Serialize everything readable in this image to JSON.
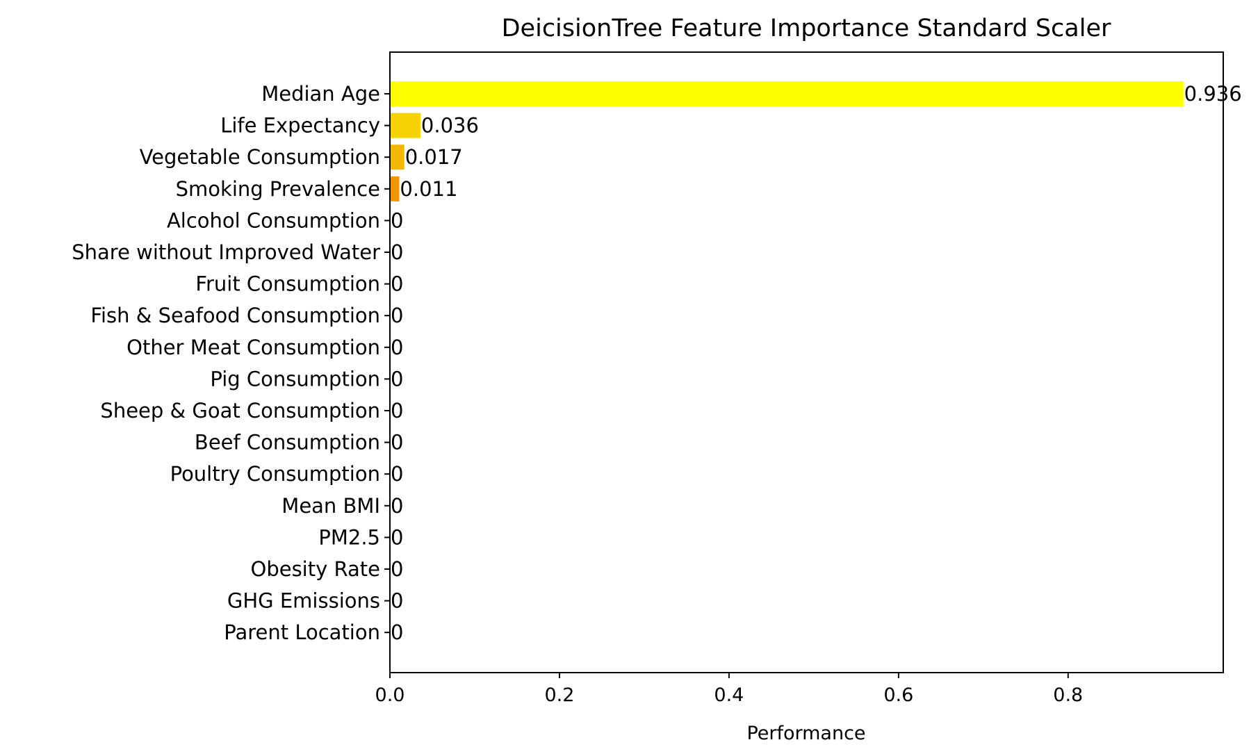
{
  "chart_data": {
    "type": "bar",
    "orientation": "horizontal",
    "title": "DeicisionTree Feature Importance Standard Scaler",
    "xlabel": "Performance",
    "ylabel": "",
    "xlim": [
      0,
      0.983
    ],
    "xticks": [
      0.0,
      0.2,
      0.4,
      0.6,
      0.8
    ],
    "xtick_labels": [
      "0.0",
      "0.2",
      "0.4",
      "0.6",
      "0.8"
    ],
    "grid": false,
    "legend": "none",
    "categories": [
      "Median Age",
      "Life Expectancy",
      "Vegetable Consumption",
      "Smoking Prevalence",
      "Alcohol Consumption",
      "Share without Improved Water",
      "Fruit Consumption",
      "Fish & Seafood Consumption",
      "Other Meat Consumption",
      "Pig Consumption",
      "Sheep & Goat Consumption",
      "Beef Consumption",
      "Poultry Consumption",
      "Mean BMI",
      "PM2.5",
      "Obesity Rate",
      "GHG Emissions",
      "Parent Location"
    ],
    "values": [
      0.936,
      0.036,
      0.017,
      0.011,
      0,
      0,
      0,
      0,
      0,
      0,
      0,
      0,
      0,
      0,
      0,
      0,
      0,
      0
    ],
    "value_labels": [
      "0.936",
      "0.036",
      "0.017",
      "0.011",
      "0",
      "0",
      "0",
      "0",
      "0",
      "0",
      "0",
      "0",
      "0",
      "0",
      "0",
      "0",
      "0",
      "0"
    ],
    "bar_colors": [
      "#ffff00",
      "#f7d100",
      "#f5b800",
      "#f09400",
      "#ffff00",
      "#ffff00",
      "#ffff00",
      "#ffff00",
      "#ffff00",
      "#ffff00",
      "#ffff00",
      "#ffff00",
      "#ffff00",
      "#ffff00",
      "#ffff00",
      "#ffff00",
      "#ffff00",
      "#ffff00"
    ]
  }
}
